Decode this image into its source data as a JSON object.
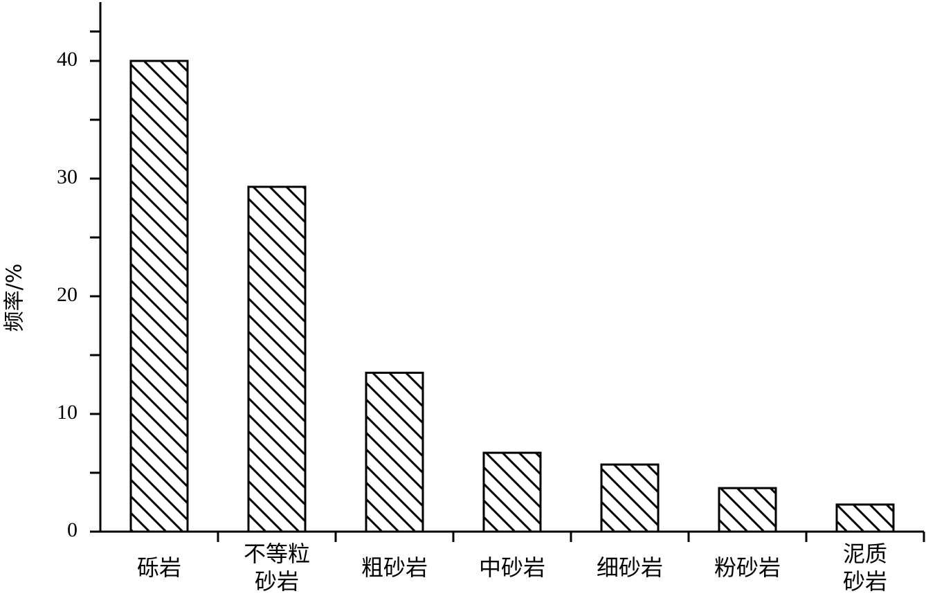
{
  "chart_data": {
    "type": "bar",
    "y_label": "频率/%",
    "categories": [
      "砾岩",
      "不等粒\n砂岩",
      "粗砂岩",
      "中砂岩",
      "细砂岩",
      "粉砂岩",
      "泥质\n砂岩"
    ],
    "values": [
      40.0,
      29.3,
      13.5,
      6.7,
      5.7,
      3.7,
      2.3
    ],
    "color": "#000000",
    "ylim": [
      0,
      45
    ],
    "yticks": [
      0,
      10,
      20,
      30,
      40
    ],
    "grid": false
  }
}
